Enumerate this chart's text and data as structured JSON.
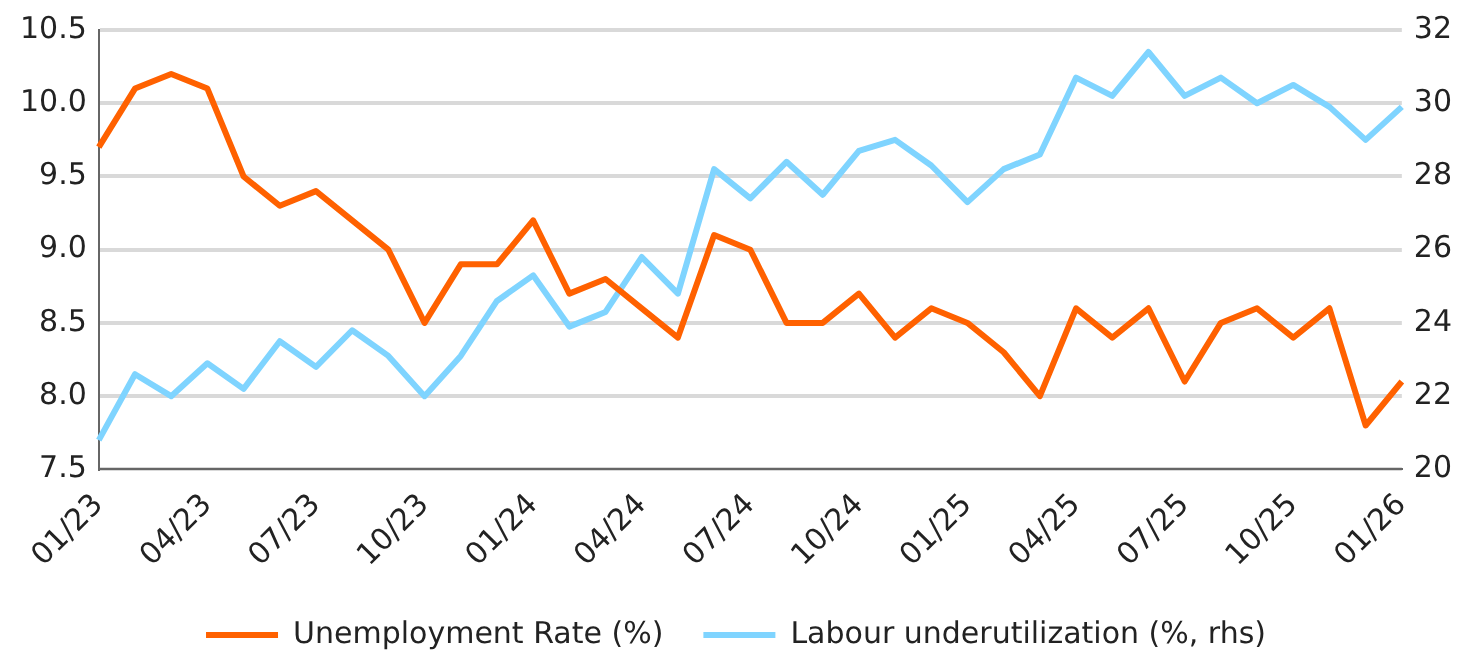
{
  "chart_data": {
    "type": "line",
    "categories": [
      "01/23",
      null,
      null,
      "04/23",
      null,
      null,
      "07/23",
      null,
      null,
      "10/23",
      null,
      null,
      "01/24",
      null,
      null,
      "04/24",
      null,
      null,
      "07/24",
      null,
      null,
      "10/24",
      null,
      null,
      "01/25",
      null,
      null,
      "04/25",
      null,
      null,
      "07/25",
      null,
      null,
      "10/25",
      null,
      null,
      "01/26"
    ],
    "series": [
      {
        "name": "Unemployment Rate (%)",
        "color": "#ff6100",
        "values": [
          9.7,
          10.1,
          10.2,
          10.1,
          9.5,
          9.3,
          9.4,
          9.2,
          9.0,
          8.5,
          8.9,
          8.9,
          9.2,
          8.7,
          8.8,
          8.6,
          8.4,
          9.1,
          9.0,
          8.5,
          8.5,
          8.7,
          8.4,
          8.6,
          8.5,
          8.3,
          8.0,
          8.6,
          8.4,
          8.6,
          8.1,
          8.5,
          8.6,
          8.4,
          8.6,
          7.8,
          8.1
        ]
      },
      {
        "name": "Labour underutilization (%, rhs)",
        "color": "#7fd4ff",
        "axis": "y2",
        "values": [
          20.8,
          22.6,
          22.0,
          22.9,
          22.2,
          23.5,
          22.8,
          23.8,
          23.1,
          22.0,
          23.1,
          24.6,
          25.3,
          23.9,
          24.3,
          25.8,
          24.8,
          28.2,
          27.4,
          28.4,
          27.5,
          28.7,
          29.0,
          28.3,
          27.3,
          28.2,
          28.6,
          30.7,
          30.2,
          31.4,
          30.2,
          30.7,
          30.0,
          30.5,
          29.9,
          29.0,
          29.9
        ]
      }
    ],
    "ylim": [
      7.5,
      10.5
    ],
    "yticks": [
      {
        "value": 7.5,
        "label": "7.5"
      },
      {
        "value": 8,
        "label": "8.0"
      },
      {
        "value": 8.5,
        "label": "8.5"
      },
      {
        "value": 9,
        "label": "9.0"
      },
      {
        "value": 9.5,
        "label": "9.5"
      },
      {
        "value": 10,
        "label": "10.0"
      },
      {
        "value": 10.5,
        "label": "10.5"
      }
    ],
    "y2lim": [
      20,
      32
    ],
    "y2ticks": [
      20,
      22,
      24,
      26,
      28,
      30,
      32
    ],
    "grid": "y",
    "legend": "bottom",
    "marker": "none",
    "line_style": "solid"
  }
}
